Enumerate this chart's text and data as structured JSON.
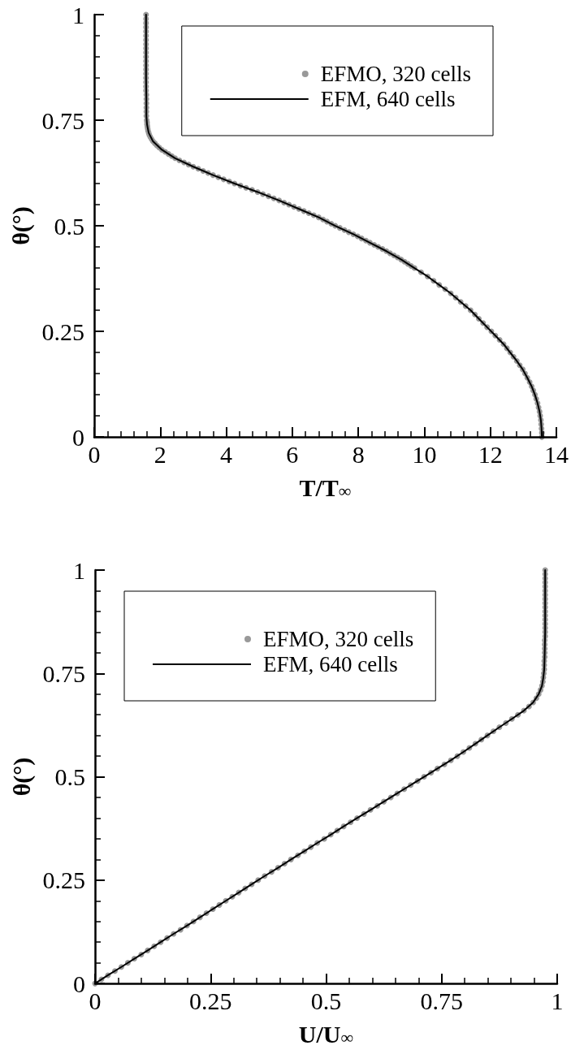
{
  "chart_data": [
    {
      "type": "line",
      "xlabel": "T/T$_{∞}$",
      "ylabel": "θ(°)",
      "legend": "top right",
      "xlim": [
        0,
        14
      ],
      "ylim": [
        0,
        1
      ],
      "xticks": [
        0,
        {
          "value": 0.4,
          "label": null
        },
        {
          "value": 0.8,
          "label": null
        },
        {
          "value": 1.2,
          "label": null
        },
        {
          "value": 1.6,
          "label": null
        },
        2,
        {
          "value": 2.4,
          "label": null
        },
        {
          "value": 2.8,
          "label": null
        },
        {
          "value": 3.2,
          "label": null
        },
        {
          "value": 3.6,
          "label": null
        },
        4,
        {
          "value": 4.4,
          "label": null
        },
        {
          "value": 4.8,
          "label": null
        },
        {
          "value": 5.2,
          "label": null
        },
        {
          "value": 5.6,
          "label": null
        },
        6,
        {
          "value": 6.4,
          "label": null
        },
        {
          "value": 6.8,
          "label": null
        },
        {
          "value": 7.2,
          "label": null
        },
        {
          "value": 7.6,
          "label": null
        },
        8,
        {
          "value": 8.4,
          "label": null
        },
        {
          "value": 8.8,
          "label": null
        },
        {
          "value": 9.2,
          "label": null
        },
        {
          "value": 9.6,
          "label": null
        },
        10,
        {
          "value": 10.4,
          "label": null
        },
        {
          "value": 10.8,
          "label": null
        },
        {
          "value": 11.2,
          "label": null
        },
        {
          "value": 11.6,
          "label": null
        },
        12,
        {
          "value": 12.4,
          "label": null
        },
        {
          "value": 12.8,
          "label": null
        },
        {
          "value": 13.2,
          "label": null
        },
        {
          "value": 13.6,
          "label": null
        },
        14
      ],
      "yticks": [
        0,
        {
          "value": 0.05,
          "label": null
        },
        {
          "value": 0.1,
          "label": null
        },
        {
          "value": 0.15,
          "label": null
        },
        {
          "value": 0.2,
          "label": null
        },
        0.25,
        {
          "value": 0.3,
          "label": null
        },
        {
          "value": 0.35,
          "label": null
        },
        {
          "value": 0.4,
          "label": null
        },
        {
          "value": 0.45,
          "label": null
        },
        0.5,
        {
          "value": 0.55,
          "label": null
        },
        {
          "value": 0.6,
          "label": null
        },
        {
          "value": 0.65,
          "label": null
        },
        {
          "value": 0.7,
          "label": null
        },
        0.75,
        {
          "value": 0.8,
          "label": null
        },
        {
          "value": 0.85,
          "label": null
        },
        {
          "value": 0.9,
          "label": null
        },
        {
          "value": 0.95,
          "label": null
        },
        1
      ],
      "series": [
        {
          "name": "EFMO, 320 cells",
          "type": "scatter",
          "marker": "circle",
          "color": "#999999",
          "x": [
            13.56,
            13.56,
            13.55,
            13.54,
            13.53,
            13.51,
            13.49,
            13.46,
            13.43,
            13.39,
            13.35,
            13.3,
            13.25,
            13.19,
            13.12,
            13.05,
            12.98,
            12.89,
            12.8,
            12.7,
            12.6,
            12.5,
            12.4,
            12.28,
            12.15,
            12.03,
            11.9,
            11.78,
            11.65,
            11.53,
            11.4,
            11.25,
            11.1,
            10.95,
            10.8,
            10.63,
            10.45,
            10.28,
            10.1,
            9.9,
            9.7,
            9.6,
            9.5,
            9.4,
            9.3,
            9.19,
            9.08,
            8.96,
            8.85,
            8.73,
            8.6,
            8.48,
            8.35,
            8.23,
            8.1,
            7.98,
            7.85,
            7.71,
            7.58,
            7.44,
            7.3,
            7.18,
            7.05,
            6.93,
            6.8,
            6.65,
            6.5,
            6.35,
            6.2,
            6.05,
            5.9,
            5.75,
            5.6,
            5.44,
            5.28,
            5.11,
            4.95,
            4.78,
            4.6,
            4.43,
            4.25,
            4.09,
            3.92,
            3.76,
            3.6,
            3.45,
            3.3,
            3.15,
            3.0,
            2.86,
            2.72,
            2.58,
            2.45,
            2.35,
            2.25,
            2.15,
            2.05,
            1.97,
            1.9,
            1.84,
            1.78,
            1.74,
            1.7,
            1.67,
            1.65,
            1.63,
            1.62,
            1.61,
            1.6,
            1.6,
            1.59,
            1.58,
            1.58,
            1.58,
            1.58,
            1.58,
            1.58,
            1.57,
            1.57,
            1.57,
            1.57,
            1.57,
            1.57,
            1.57,
            1.57,
            1.57,
            1.57,
            1.57,
            1.57,
            1.57,
            1.57,
            1.57,
            1.57,
            1.57,
            1.57,
            1.57
          ],
          "values": [
            0,
            0.01,
            0.02,
            0.03,
            0.04,
            0.05,
            0.06,
            0.07,
            0.08,
            0.09,
            0.1,
            0.11,
            0.12,
            0.13,
            0.14,
            0.15,
            0.16,
            0.17,
            0.18,
            0.19,
            0.2,
            0.21,
            0.22,
            0.23,
            0.24,
            0.25,
            0.26,
            0.27,
            0.28,
            0.29,
            0.3,
            0.31,
            0.32,
            0.33,
            0.34,
            0.35,
            0.36,
            0.37,
            0.38,
            0.39,
            0.4,
            0.405,
            0.41,
            0.415,
            0.42,
            0.425,
            0.43,
            0.435,
            0.44,
            0.445,
            0.45,
            0.455,
            0.46,
            0.465,
            0.47,
            0.475,
            0.48,
            0.485,
            0.49,
            0.495,
            0.5,
            0.505,
            0.51,
            0.515,
            0.52,
            0.525,
            0.53,
            0.535,
            0.54,
            0.545,
            0.55,
            0.555,
            0.56,
            0.565,
            0.57,
            0.575,
            0.58,
            0.585,
            0.59,
            0.595,
            0.6,
            0.605,
            0.61,
            0.615,
            0.62,
            0.625,
            0.63,
            0.635,
            0.64,
            0.645,
            0.65,
            0.655,
            0.66,
            0.665,
            0.67,
            0.675,
            0.68,
            0.685,
            0.69,
            0.695,
            0.7,
            0.705,
            0.71,
            0.715,
            0.72,
            0.725,
            0.73,
            0.735,
            0.74,
            0.745,
            0.75,
            0.76,
            0.77,
            0.78,
            0.79,
            0.8,
            0.81,
            0.82,
            0.83,
            0.84,
            0.85,
            0.86,
            0.87,
            0.88,
            0.89,
            0.9,
            0.91,
            0.92,
            0.93,
            0.94,
            0.95,
            0.96,
            0.97,
            0.98,
            0.99,
            1
          ]
        },
        {
          "name": "EFM, 640 cells",
          "type": "line",
          "marker": "none",
          "color": "#000000",
          "x": [
            13.56,
            13.55,
            13.53,
            13.49,
            13.43,
            13.35,
            13.25,
            13.12,
            12.98,
            12.8,
            12.6,
            12.4,
            12.15,
            11.9,
            11.65,
            11.4,
            11.1,
            10.8,
            10.45,
            10.1,
            9.7,
            9.3,
            8.85,
            8.35,
            7.85,
            7.3,
            6.8,
            6.2,
            5.6,
            4.95,
            4.25,
            3.6,
            3.0,
            2.45,
            2.05,
            1.78,
            1.65,
            1.6,
            1.58,
            1.58,
            1.57,
            1.57,
            1.57,
            1.57
          ],
          "values": [
            0,
            0.02,
            0.04,
            0.06,
            0.08,
            0.1,
            0.12,
            0.14,
            0.16,
            0.18,
            0.2,
            0.22,
            0.24,
            0.26,
            0.28,
            0.3,
            0.32,
            0.34,
            0.36,
            0.38,
            0.4,
            0.42,
            0.44,
            0.46,
            0.48,
            0.5,
            0.52,
            0.54,
            0.56,
            0.58,
            0.6,
            0.62,
            0.64,
            0.66,
            0.68,
            0.7,
            0.72,
            0.74,
            0.76,
            0.8,
            0.85,
            0.9,
            0.95,
            1
          ]
        }
      ]
    },
    {
      "type": "line",
      "xlabel": "U/U$_{∞}$",
      "ylabel": "θ(°)",
      "legend": "top left",
      "xlim": [
        0,
        1
      ],
      "ylim": [
        0,
        1
      ],
      "xticks": [
        0,
        {
          "value": 0.05,
          "label": null
        },
        {
          "value": 0.1,
          "label": null
        },
        {
          "value": 0.15,
          "label": null
        },
        {
          "value": 0.2,
          "label": null
        },
        0.25,
        {
          "value": 0.3,
          "label": null
        },
        {
          "value": 0.35,
          "label": null
        },
        {
          "value": 0.4,
          "label": null
        },
        {
          "value": 0.45,
          "label": null
        },
        0.5,
        {
          "value": 0.55,
          "label": null
        },
        {
          "value": 0.6,
          "label": null
        },
        {
          "value": 0.65,
          "label": null
        },
        {
          "value": 0.7,
          "label": null
        },
        0.75,
        {
          "value": 0.8,
          "label": null
        },
        {
          "value": 0.85,
          "label": null
        },
        {
          "value": 0.9,
          "label": null
        },
        {
          "value": 0.95,
          "label": null
        },
        1
      ],
      "yticks": [
        0,
        {
          "value": 0.05,
          "label": null
        },
        {
          "value": 0.1,
          "label": null
        },
        {
          "value": 0.15,
          "label": null
        },
        {
          "value": 0.2,
          "label": null
        },
        0.25,
        {
          "value": 0.3,
          "label": null
        },
        {
          "value": 0.35,
          "label": null
        },
        {
          "value": 0.4,
          "label": null
        },
        {
          "value": 0.45,
          "label": null
        },
        0.5,
        {
          "value": 0.55,
          "label": null
        },
        {
          "value": 0.6,
          "label": null
        },
        {
          "value": 0.65,
          "label": null
        },
        {
          "value": 0.7,
          "label": null
        },
        0.75,
        {
          "value": 0.8,
          "label": null
        },
        {
          "value": 0.85,
          "label": null
        },
        {
          "value": 0.9,
          "label": null
        },
        {
          "value": 0.95,
          "label": null
        },
        1
      ],
      "series": [
        {
          "name": "EFMO, 320 cells",
          "type": "scatter",
          "marker": "circle",
          "color": "#999999",
          "x": [
            0,
            0.014,
            0.028,
            0.043,
            0.057,
            0.071,
            0.085,
            0.1,
            0.114,
            0.128,
            0.142,
            0.156,
            0.17,
            0.185,
            0.199,
            0.213,
            0.227,
            0.241,
            0.255,
            0.269,
            0.283,
            0.297,
            0.311,
            0.325,
            0.339,
            0.353,
            0.367,
            0.382,
            0.396,
            0.41,
            0.424,
            0.439,
            0.453,
            0.467,
            0.481,
            0.496,
            0.51,
            0.524,
            0.538,
            0.553,
            0.567,
            0.582,
            0.596,
            0.611,
            0.625,
            0.64,
            0.654,
            0.669,
            0.683,
            0.698,
            0.712,
            0.727,
            0.741,
            0.756,
            0.77,
            0.784,
            0.797,
            0.81,
            0.823,
            0.836,
            0.849,
            0.862,
            0.875,
            0.889,
            0.902,
            0.915,
            0.928,
            0.939,
            0.948,
            0.955,
            0.96,
            0.964,
            0.967,
            0.969,
            0.97,
            0.971,
            0.972,
            0.972,
            0.972,
            0.973,
            0.973,
            0.973,
            0.973,
            0.973,
            0.974,
            0.974,
            0.974,
            0.974,
            0.974,
            0.974,
            0.974,
            0.974,
            0.974,
            0.974,
            0.974,
            0.974,
            0.974,
            0.974,
            0.974,
            0.974,
            0.974
          ],
          "values": [
            0,
            0.01,
            0.02,
            0.03,
            0.04,
            0.05,
            0.06,
            0.07,
            0.08,
            0.09,
            0.1,
            0.11,
            0.12,
            0.13,
            0.14,
            0.15,
            0.16,
            0.17,
            0.18,
            0.19,
            0.2,
            0.21,
            0.22,
            0.23,
            0.24,
            0.25,
            0.26,
            0.27,
            0.28,
            0.29,
            0.3,
            0.31,
            0.32,
            0.33,
            0.34,
            0.35,
            0.36,
            0.37,
            0.38,
            0.39,
            0.4,
            0.41,
            0.42,
            0.43,
            0.44,
            0.45,
            0.46,
            0.47,
            0.48,
            0.49,
            0.5,
            0.51,
            0.52,
            0.53,
            0.54,
            0.55,
            0.56,
            0.57,
            0.58,
            0.59,
            0.6,
            0.61,
            0.62,
            0.63,
            0.64,
            0.65,
            0.66,
            0.67,
            0.68,
            0.69,
            0.7,
            0.71,
            0.72,
            0.73,
            0.74,
            0.75,
            0.76,
            0.77,
            0.78,
            0.79,
            0.8,
            0.81,
            0.82,
            0.83,
            0.84,
            0.85,
            0.86,
            0.87,
            0.88,
            0.89,
            0.9,
            0.91,
            0.92,
            0.93,
            0.94,
            0.95,
            0.96,
            0.97,
            0.98,
            0.99,
            1
          ]
        },
        {
          "name": "EFM, 640 cells",
          "type": "line",
          "marker": "none",
          "color": "#000000",
          "x": [
            0,
            0.028,
            0.057,
            0.085,
            0.114,
            0.142,
            0.17,
            0.199,
            0.227,
            0.255,
            0.283,
            0.311,
            0.339,
            0.367,
            0.396,
            0.424,
            0.453,
            0.481,
            0.51,
            0.538,
            0.567,
            0.596,
            0.625,
            0.654,
            0.683,
            0.712,
            0.741,
            0.77,
            0.797,
            0.823,
            0.849,
            0.875,
            0.902,
            0.928,
            0.948,
            0.96,
            0.967,
            0.97,
            0.972,
            0.973,
            0.974,
            0.974,
            0.974,
            0.974
          ],
          "values": [
            0,
            0.02,
            0.04,
            0.06,
            0.08,
            0.1,
            0.12,
            0.14,
            0.16,
            0.18,
            0.2,
            0.22,
            0.24,
            0.26,
            0.28,
            0.3,
            0.32,
            0.34,
            0.36,
            0.38,
            0.4,
            0.42,
            0.44,
            0.46,
            0.48,
            0.5,
            0.52,
            0.54,
            0.56,
            0.58,
            0.6,
            0.62,
            0.64,
            0.66,
            0.68,
            0.7,
            0.72,
            0.74,
            0.76,
            0.8,
            0.85,
            0.9,
            0.95,
            1
          ]
        }
      ]
    }
  ]
}
